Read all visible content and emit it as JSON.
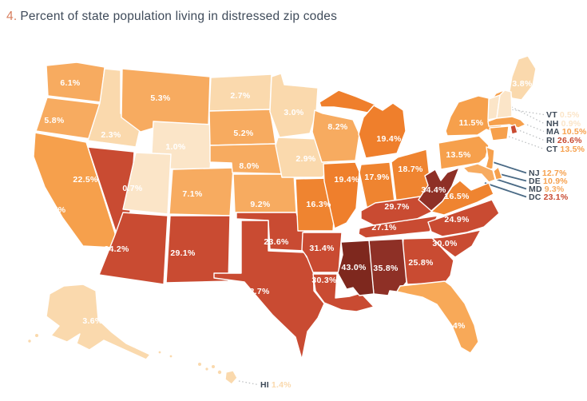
{
  "title": {
    "number": "4.",
    "text": "Percent of state population living in distressed zip codes"
  },
  "colors": {
    "background": "#FFFFFF",
    "state_border": "#FFFFFF",
    "map_label_text": "#FFFFFF",
    "callout_abbr_text": "#3E4A58",
    "title_number": "#D87E5E",
    "title_text": "#3F4B5A",
    "leader_dotted": "#B9BCBE",
    "leader_solid": "#4A6A85"
  },
  "chart_data": {
    "type": "choropleth_map",
    "title": "Percent of state population living in distressed zip codes",
    "unit": "%",
    "legend": "none",
    "callout_states": [
      "VT",
      "NH",
      "MA",
      "RI",
      "CT",
      "NJ",
      "DE",
      "MD",
      "DC",
      "HI"
    ],
    "states": {
      "WA": {
        "value": 6.1,
        "color": "#F7AB60"
      },
      "OR": {
        "value": 5.8,
        "color": "#F7AB60"
      },
      "CA": {
        "value": 11.7,
        "color": "#F6A04C"
      },
      "ID": {
        "value": 2.3,
        "color": "#FAD9AD"
      },
      "NV": {
        "value": 22.5,
        "color": "#C94B32"
      },
      "UT": {
        "value": 0.7,
        "color": "#FBE5C8"
      },
      "AZ": {
        "value": 24.2,
        "color": "#C94B32"
      },
      "MT": {
        "value": 5.3,
        "color": "#F7AB60"
      },
      "WY": {
        "value": 1.0,
        "color": "#FBE5C8"
      },
      "CO": {
        "value": 7.1,
        "color": "#F7AB60"
      },
      "NM": {
        "value": 29.1,
        "color": "#C94B32"
      },
      "ND": {
        "value": 2.7,
        "color": "#FAD9AD"
      },
      "SD": {
        "value": 5.2,
        "color": "#F7AB60"
      },
      "NE": {
        "value": 8.0,
        "color": "#F7AB60"
      },
      "KS": {
        "value": 9.2,
        "color": "#F7AB60"
      },
      "OK": {
        "value": 23.6,
        "color": "#C94B32"
      },
      "TX": {
        "value": 22.7,
        "color": "#C94B32"
      },
      "MN": {
        "value": 3.0,
        "color": "#FAD9AD"
      },
      "IA": {
        "value": 2.9,
        "color": "#FAD9AD"
      },
      "MO": {
        "value": 16.3,
        "color": "#EF8430"
      },
      "AR": {
        "value": 31.4,
        "color": "#C94B32"
      },
      "LA": {
        "value": 30.3,
        "color": "#C94B32"
      },
      "WI": {
        "value": 8.2,
        "color": "#F7AB60"
      },
      "IL": {
        "value": 19.4,
        "color": "#EF7F2C"
      },
      "MI": {
        "value": 19.4,
        "color": "#EF7F2C"
      },
      "IN": {
        "value": 17.9,
        "color": "#EF8430"
      },
      "OH": {
        "value": 18.7,
        "color": "#EF8430"
      },
      "KY": {
        "value": 29.7,
        "color": "#C94B32"
      },
      "TN": {
        "value": 27.1,
        "color": "#C94B32"
      },
      "MS": {
        "value": 43.0,
        "color": "#7E281E"
      },
      "AL": {
        "value": 35.8,
        "color": "#8E3026"
      },
      "GA": {
        "value": 25.8,
        "color": "#C94B32"
      },
      "FL": {
        "value": 13.4,
        "color": "#F8A958"
      },
      "SC": {
        "value": 30.0,
        "color": "#C94B32"
      },
      "NC": {
        "value": 24.9,
        "color": "#C94B32"
      },
      "VA": {
        "value": 16.5,
        "color": "#EF8430"
      },
      "WV": {
        "value": 34.4,
        "color": "#8E3026"
      },
      "PA": {
        "value": 13.5,
        "color": "#F6A04C"
      },
      "NY": {
        "value": 11.5,
        "color": "#F6A04C"
      },
      "ME": {
        "value": 3.8,
        "color": "#FAD9AD"
      },
      "VT": {
        "value": 0.5,
        "color": "#FBE5C8"
      },
      "NH": {
        "value": 0.9,
        "color": "#FBE5C8"
      },
      "MA": {
        "value": 10.5,
        "color": "#F6A04C"
      },
      "RI": {
        "value": 26.6,
        "color": "#C94B32"
      },
      "CT": {
        "value": 13.5,
        "color": "#F6A04C"
      },
      "NJ": {
        "value": 12.7,
        "color": "#F6A04C"
      },
      "DE": {
        "value": 10.9,
        "color": "#F6A04C"
      },
      "MD": {
        "value": 9.3,
        "color": "#F7AB60"
      },
      "DC": {
        "value": 23.1,
        "color": "#C94B32"
      },
      "AK": {
        "value": 3.6,
        "color": "#FAD9AD"
      },
      "HI": {
        "value": 1.4,
        "color": "#FAD9AD"
      }
    }
  }
}
